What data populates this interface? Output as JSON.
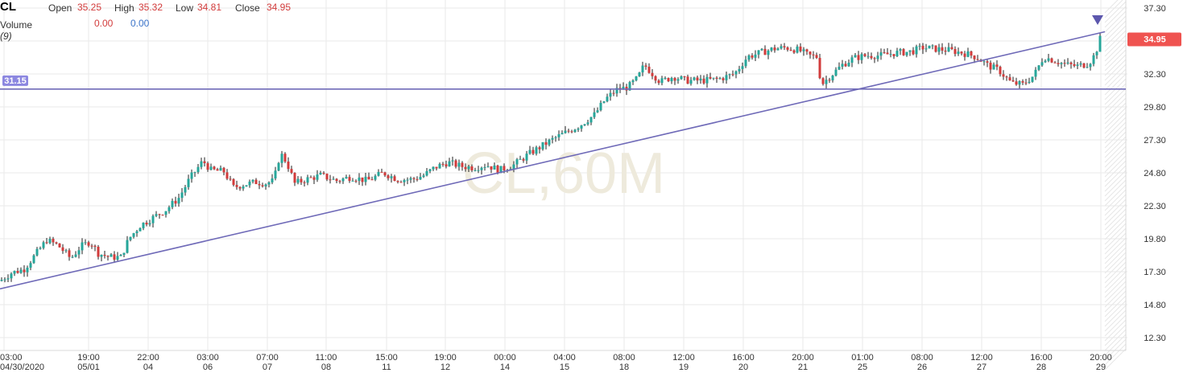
{
  "header": {
    "symbol": "CL",
    "open_label": "Open",
    "open_value": "35.25",
    "high_label": "High",
    "high_value": "35.32",
    "low_label": "Low",
    "low_value": "34.81",
    "close_label": "Close",
    "close_value": "34.95",
    "volume_label": "Volume",
    "volume_period": "(9)",
    "volume_value_1": "0.00",
    "volume_value_2": "0.00"
  },
  "watermark": "CL,60M",
  "price_tag": "34.95",
  "level_tag": "31.15",
  "colors": {
    "up": "#26a69a",
    "down": "#d23b3b",
    "line": "#6f6ab8",
    "price_tag_bg": "#ef5350",
    "level_tag_bg": "#8c87e0"
  },
  "chart_data": {
    "type": "candlestick",
    "y_axis": {
      "ticks": [
        37.3,
        34.8,
        32.3,
        29.8,
        27.3,
        24.8,
        22.3,
        19.8,
        17.3,
        14.8,
        12.3
      ],
      "ylim": [
        11.9,
        37.6
      ]
    },
    "x_axis": {
      "ticks": [
        {
          "time": "03:00",
          "date": "04/30/2020"
        },
        {
          "time": "19:00",
          "date": "05/01"
        },
        {
          "time": "22:00",
          "date": "04"
        },
        {
          "time": "03:00",
          "date": "06"
        },
        {
          "time": "07:00",
          "date": "07"
        },
        {
          "time": "11:00",
          "date": "08"
        },
        {
          "time": "15:00",
          "date": "11"
        },
        {
          "time": "19:00",
          "date": "12"
        },
        {
          "time": "00:00",
          "date": "14"
        },
        {
          "time": "04:00",
          "date": "15"
        },
        {
          "time": "08:00",
          "date": "18"
        },
        {
          "time": "12:00",
          "date": "19"
        },
        {
          "time": "16:00",
          "date": "20"
        },
        {
          "time": "20:00",
          "date": "21"
        },
        {
          "time": "01:00",
          "date": "25"
        },
        {
          "time": "08:00",
          "date": "26"
        },
        {
          "time": "12:00",
          "date": "27"
        },
        {
          "time": "16:00",
          "date": "28"
        },
        {
          "time": "20:00",
          "date": "29"
        }
      ]
    },
    "close_path": [
      [
        0,
        16.6
      ],
      [
        14,
        17.2
      ],
      [
        30,
        17.5
      ],
      [
        44,
        18.6
      ],
      [
        58,
        19.7
      ],
      [
        72,
        19.3
      ],
      [
        88,
        18.3
      ],
      [
        100,
        19.2
      ],
      [
        112,
        19.6
      ],
      [
        122,
        18.7
      ],
      [
        136,
        18.4
      ],
      [
        150,
        18.4
      ],
      [
        160,
        19.8
      ],
      [
        174,
        20.8
      ],
      [
        190,
        21.4
      ],
      [
        206,
        22.0
      ],
      [
        222,
        22.9
      ],
      [
        236,
        24.4
      ],
      [
        252,
        25.7
      ],
      [
        262,
        25.0
      ],
      [
        278,
        24.9
      ],
      [
        290,
        23.7
      ],
      [
        302,
        23.9
      ],
      [
        318,
        24.1
      ],
      [
        330,
        24.0
      ],
      [
        340,
        24.2
      ],
      [
        348,
        26.3
      ],
      [
        356,
        25.6
      ],
      [
        366,
        24.0
      ],
      [
        380,
        24.3
      ],
      [
        398,
        24.6
      ],
      [
        418,
        24.2
      ],
      [
        436,
        24.5
      ],
      [
        456,
        24.2
      ],
      [
        476,
        24.8
      ],
      [
        494,
        24.3
      ],
      [
        512,
        24.3
      ],
      [
        526,
        24.6
      ],
      [
        540,
        25.2
      ],
      [
        556,
        25.6
      ],
      [
        572,
        25.3
      ],
      [
        588,
        25.2
      ],
      [
        604,
        25.4
      ],
      [
        620,
        25.0
      ],
      [
        638,
        25.4
      ],
      [
        656,
        26.2
      ],
      [
        672,
        26.8
      ],
      [
        688,
        27.4
      ],
      [
        704,
        27.9
      ],
      [
        720,
        28.4
      ],
      [
        738,
        29.2
      ],
      [
        752,
        30.4
      ],
      [
        766,
        31.1
      ],
      [
        780,
        31.3
      ],
      [
        792,
        32.0
      ],
      [
        800,
        33.0
      ],
      [
        812,
        32.2
      ],
      [
        820,
        31.7
      ],
      [
        836,
        32.1
      ],
      [
        852,
        31.8
      ],
      [
        872,
        31.8
      ],
      [
        892,
        31.9
      ],
      [
        912,
        32.3
      ],
      [
        928,
        33.6
      ],
      [
        944,
        33.9
      ],
      [
        960,
        34.2
      ],
      [
        976,
        34.3
      ],
      [
        992,
        34.1
      ],
      [
        1004,
        33.7
      ],
      [
        1014,
        33.6
      ],
      [
        1020,
        31.5
      ],
      [
        1032,
        32.2
      ],
      [
        1046,
        33.0
      ],
      [
        1060,
        33.5
      ],
      [
        1076,
        33.7
      ],
      [
        1094,
        33.7
      ],
      [
        1112,
        33.9
      ],
      [
        1132,
        34.0
      ],
      [
        1146,
        34.3
      ],
      [
        1162,
        34.2
      ],
      [
        1178,
        34.1
      ],
      [
        1196,
        33.9
      ],
      [
        1212,
        33.6
      ],
      [
        1228,
        32.9
      ],
      [
        1240,
        32.6
      ],
      [
        1256,
        31.6
      ],
      [
        1270,
        31.5
      ],
      [
        1284,
        32.2
      ],
      [
        1296,
        33.6
      ],
      [
        1310,
        33.3
      ],
      [
        1324,
        33.0
      ],
      [
        1338,
        32.9
      ],
      [
        1352,
        33.1
      ],
      [
        1360,
        33.8
      ],
      [
        1366,
        34.95
      ]
    ],
    "trendline": {
      "from": [
        "04/30/2020 03:00",
        16.0
      ],
      "to": [
        "05/29 20:00",
        35.5
      ]
    },
    "horizontal_line": 31.15,
    "last_price": 34.95
  }
}
